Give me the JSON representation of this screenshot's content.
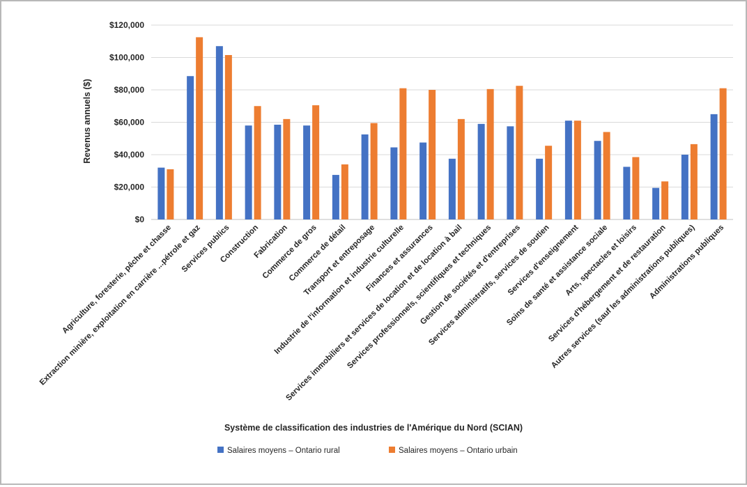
{
  "chart_data": {
    "type": "bar",
    "xlabel": "Système de classification des industries de l'Amérique du Nord (SCIAN)",
    "ylabel": "Revenus annuels ($)",
    "ylim": [
      0,
      120000
    ],
    "yticks": [
      "$0",
      "$20,000",
      "$40,000",
      "$60,000",
      "$80,000",
      "$100,000",
      "$120,000"
    ],
    "grid": true,
    "legend_position": "bottom",
    "categories": [
      "Agriculture, foresterie, pêche et chasse",
      "Extraction minière, exploitation en carrière ...pétrole et gaz",
      "Services publics",
      "Construction",
      "Fabrication",
      "Commerce de gros",
      "Commerce de détail",
      "Transport et entreposage",
      "Industrie de l'information et industrie culturelle",
      "Finances et assurances",
      "Services immobiliers et services de location et de location à bail",
      "Services professionnels, scientifiques et techniques",
      "Gestion de sociétés et d'entreprises",
      "Services administratifs, services de soutien",
      "Services d'enseignement",
      "Soins de santé et assistance sociale",
      "Arts, spectacles et loisirs",
      "Services d'hébergement et de restauration",
      "Autres services (sauf les administrations publiques)",
      "Administrations publiques"
    ],
    "series": [
      {
        "name": "Salaires moyens – Ontario rural",
        "color": "#4472c4",
        "values": [
          32000,
          88500,
          107000,
          58000,
          58500,
          58000,
          27500,
          52500,
          44500,
          47500,
          37500,
          59000,
          57500,
          37500,
          61000,
          48500,
          32500,
          19500,
          40000,
          65000
        ]
      },
      {
        "name": "Salaires moyens – Ontario urbain",
        "color": "#ed7d31",
        "values": [
          31000,
          112500,
          101500,
          70000,
          62000,
          70500,
          34000,
          59500,
          81000,
          80000,
          62000,
          80500,
          82500,
          45500,
          61000,
          54000,
          38500,
          23500,
          46500,
          81000
        ]
      }
    ]
  }
}
